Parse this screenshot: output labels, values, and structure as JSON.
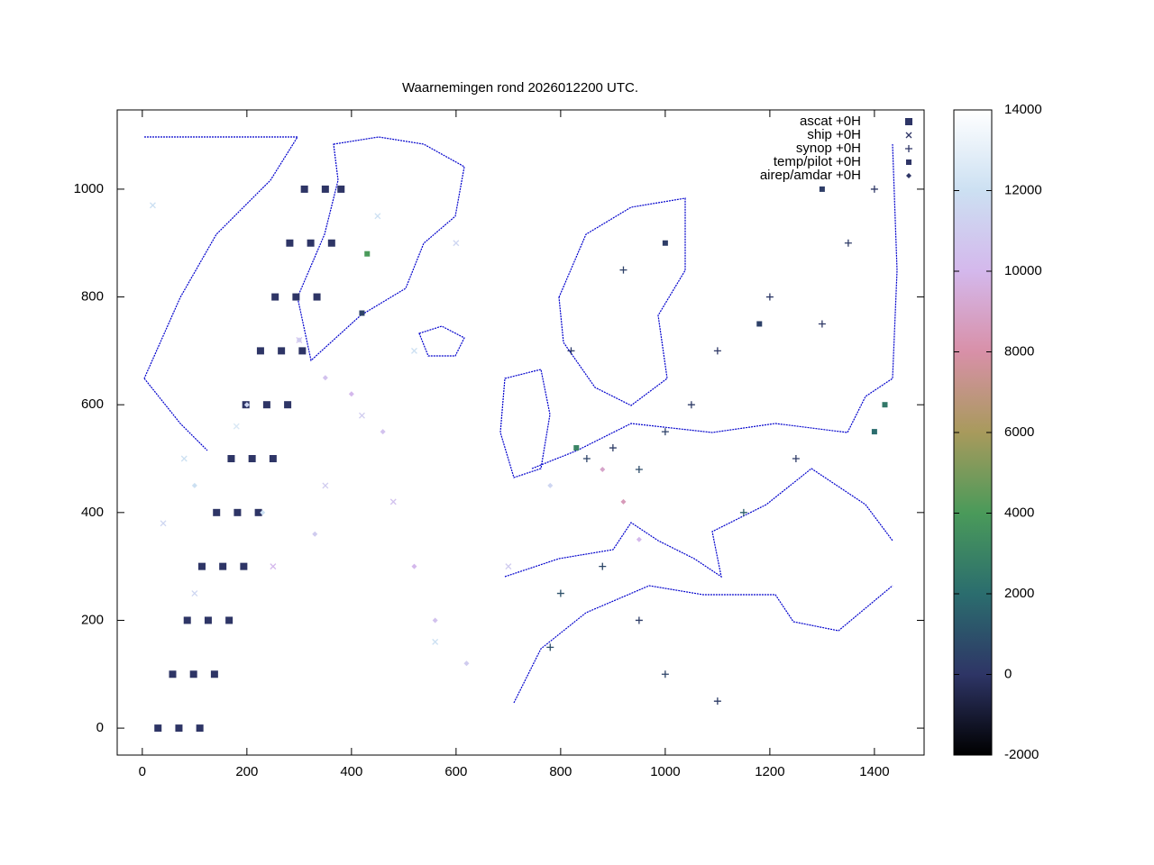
{
  "chart_data": {
    "type": "scatter",
    "title": "Waarnemingen rond 2026012200 UTC.",
    "xlim": [
      -48,
      1495
    ],
    "ylim": [
      -50,
      1147
    ],
    "xticks": [
      0,
      200,
      400,
      600,
      800,
      1000,
      1200,
      1400
    ],
    "yticks": [
      0,
      200,
      400,
      600,
      800,
      1000
    ],
    "cblim": [
      -2000,
      14000
    ],
    "cbticks": [
      -2000,
      0,
      2000,
      4000,
      6000,
      8000,
      10000,
      12000,
      14000
    ],
    "palette": [
      "#000000",
      "#2e3566",
      "#2b6d6e",
      "#4a9a5a",
      "#a89a5c",
      "#d890a8",
      "#d4b8ec",
      "#cce0f2",
      "#ffffff"
    ],
    "legend": "top-right",
    "series": [
      {
        "name": "ascat +0H",
        "marker": "dot",
        "x": [
          30,
          70,
          110,
          58,
          98,
          138,
          86,
          126,
          166,
          114,
          154,
          194,
          142,
          182,
          222,
          170,
          210,
          250,
          198,
          238,
          278,
          226,
          266,
          306,
          254,
          294,
          334,
          282,
          322,
          362,
          310,
          350,
          380
        ],
        "y": [
          0,
          0,
          0,
          100,
          100,
          100,
          200,
          200,
          200,
          300,
          300,
          300,
          400,
          400,
          400,
          500,
          500,
          500,
          600,
          600,
          600,
          700,
          700,
          700,
          800,
          800,
          800,
          900,
          900,
          900,
          1000,
          1000,
          1000
        ],
        "z": [
          0,
          0,
          0,
          0,
          0,
          0,
          0,
          0,
          0,
          0,
          0,
          0,
          0,
          0,
          0,
          0,
          0,
          0,
          0,
          0,
          0,
          0,
          0,
          0,
          0,
          0,
          0,
          0,
          0,
          0,
          0,
          0,
          0
        ]
      },
      {
        "name": "ship +0H",
        "marker": "cross",
        "x": [
          20,
          40,
          300,
          420,
          520,
          600,
          700,
          250,
          180,
          80,
          350,
          480,
          560,
          100,
          450
        ],
        "y": [
          970,
          380,
          720,
          580,
          700,
          900,
          300,
          300,
          560,
          500,
          450,
          420,
          160,
          250,
          950
        ],
        "z": [
          12000,
          11500,
          10500,
          11000,
          12000,
          11500,
          11000,
          10000,
          12500,
          12000,
          11000,
          10500,
          12000,
          11500,
          12000
        ]
      },
      {
        "name": "synop +0H",
        "marker": "plus",
        "x": [
          850,
          900,
          950,
          1000,
          1050,
          1100,
          1200,
          1300,
          1350,
          880,
          800,
          950,
          1000,
          1100,
          780,
          1250,
          1400,
          1150,
          920,
          820
        ],
        "y": [
          500,
          520,
          480,
          550,
          600,
          700,
          800,
          750,
          900,
          300,
          250,
          200,
          100,
          50,
          150,
          500,
          1000,
          400,
          850,
          700
        ],
        "z": [
          500,
          300,
          800,
          400,
          200,
          100,
          150,
          100,
          200,
          600,
          1000,
          300,
          500,
          300,
          900,
          200,
          100,
          1500,
          400,
          200
        ]
      },
      {
        "name": "temp/pilot +0H",
        "marker": "square",
        "x": [
          1420,
          1300,
          420,
          1180,
          1400,
          1000,
          830,
          430
        ],
        "y": [
          600,
          1000,
          770,
          750,
          550,
          900,
          520,
          880
        ],
        "z": [
          2500,
          300,
          500,
          400,
          2000,
          300,
          3000,
          4000
        ]
      },
      {
        "name": "airep/amdar +0H",
        "marker": "diamond",
        "x": [
          300,
          350,
          400,
          460,
          200,
          100,
          520,
          560,
          620,
          780,
          880,
          920,
          950,
          230,
          330
        ],
        "y": [
          720,
          650,
          620,
          550,
          600,
          450,
          300,
          200,
          120,
          450,
          480,
          420,
          350,
          400,
          360
        ],
        "z": [
          11000,
          10500,
          10000,
          10500,
          11500,
          12000,
          10000,
          10500,
          11000,
          11500,
          9000,
          8500,
          10000,
          12000,
          11000
        ]
      }
    ]
  }
}
